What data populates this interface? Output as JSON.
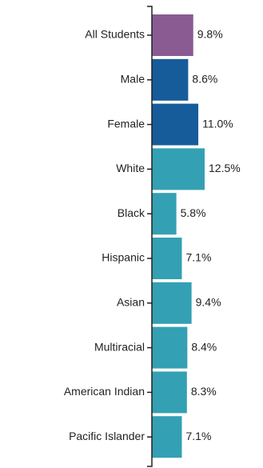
{
  "chart_data": {
    "type": "bar",
    "orientation": "horizontal",
    "categories": [
      "All Students",
      "Male",
      "Female",
      "White",
      "Black",
      "Hispanic",
      "Asian",
      "Multiracial",
      "American Indian",
      "Pacific Islander"
    ],
    "values": [
      9.8,
      8.6,
      11.0,
      12.5,
      5.8,
      7.1,
      9.4,
      8.4,
      8.3,
      7.1
    ],
    "value_labels": [
      "9.8%",
      "8.6%",
      "11.0%",
      "12.5%",
      "5.8%",
      "7.1%",
      "9.4%",
      "8.4%",
      "8.3%",
      "7.1%"
    ],
    "title": "",
    "xlabel": "",
    "ylabel": "",
    "xlim": [
      0,
      12.5
    ],
    "grid": false,
    "legend": "none"
  },
  "colors": {
    "all_students": "#8a5b93",
    "gender": "#165c9a",
    "race_ethnicity": "#34a0b4",
    "axis": "#222222"
  },
  "bar_groups": [
    "all_students",
    "gender",
    "gender",
    "race_ethnicity",
    "race_ethnicity",
    "race_ethnicity",
    "race_ethnicity",
    "race_ethnicity",
    "race_ethnicity",
    "race_ethnicity"
  ]
}
